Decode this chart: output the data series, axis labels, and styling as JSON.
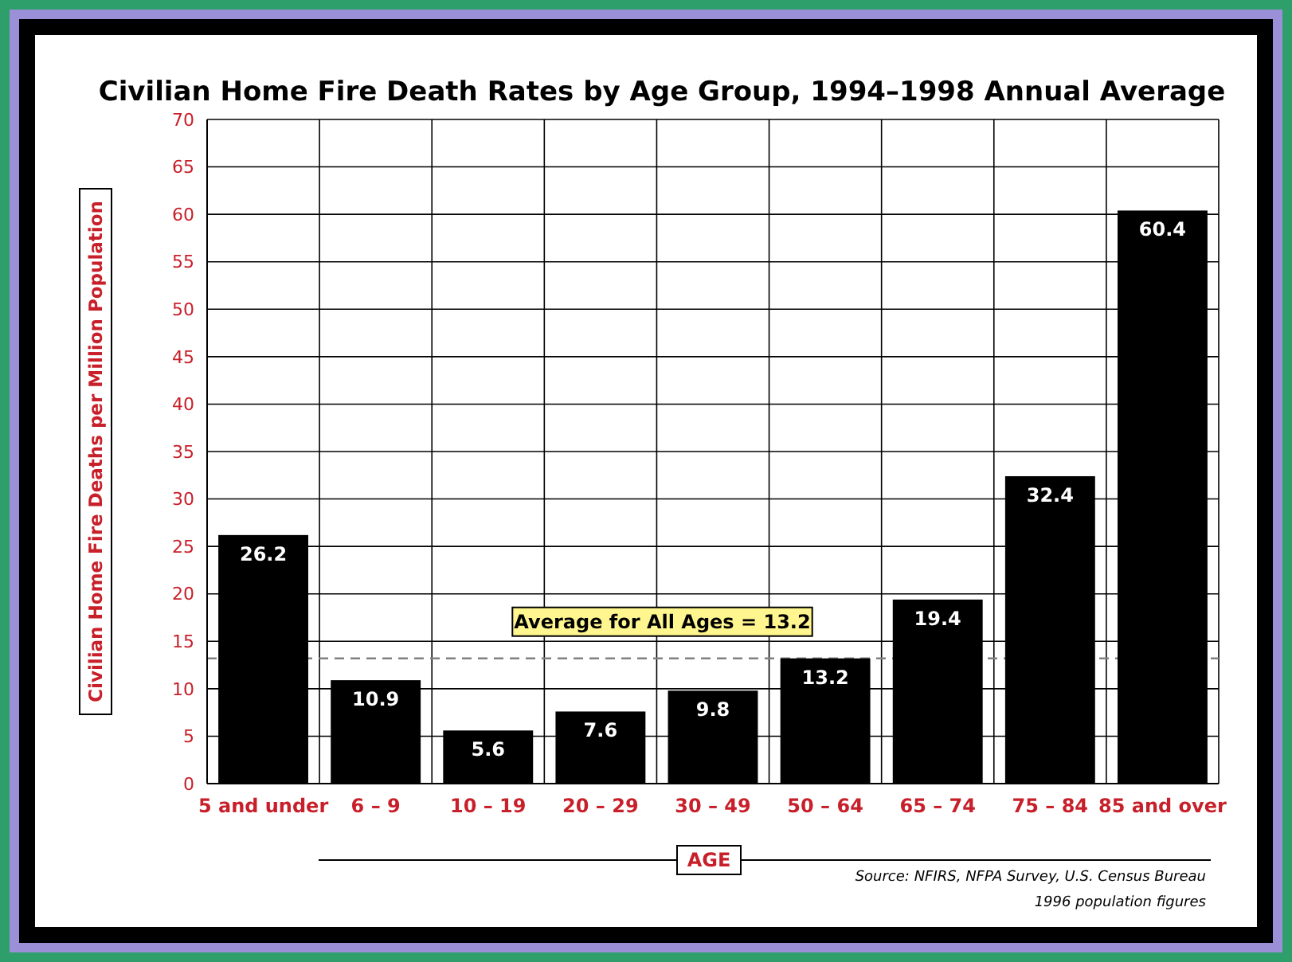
{
  "chart_data": {
    "type": "bar",
    "title": "Civilian Home Fire Death Rates by Age Group, 1994–1998 Annual Average",
    "ylabel": "Civilian Home Fire Deaths per Million Population",
    "xlabel": "AGE",
    "categories": [
      "5 and under",
      "6 – 9",
      "10 – 19",
      "20 – 29",
      "30 – 49",
      "50 – 64",
      "65 – 74",
      "75 – 84",
      "85 and over"
    ],
    "values": [
      26.2,
      10.9,
      5.6,
      7.6,
      9.8,
      13.2,
      19.4,
      32.4,
      60.4
    ],
    "color": "#000000",
    "data_labels": true,
    "ylim": [
      0,
      70
    ],
    "yticks": [
      0,
      5,
      10,
      15,
      20,
      25,
      30,
      35,
      40,
      45,
      50,
      55,
      60,
      65,
      70
    ],
    "grid": true,
    "ref_lines": [
      {
        "axis": "y",
        "value": 13.2,
        "label": "Average for All Ages = 13.2",
        "color": "#808080",
        "line_style": "dashed"
      }
    ],
    "annotations": [
      "Source: NFIRS, NFPA Survey, U.S. Census Bureau",
      "1996 population figures"
    ]
  }
}
